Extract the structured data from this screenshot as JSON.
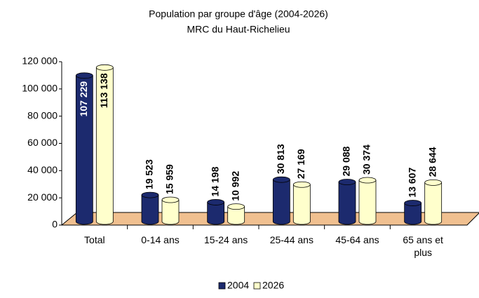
{
  "chart_data": {
    "type": "bar",
    "title": "Population par groupe d'âge (2004-2026)",
    "subtitle": "MRC du Haut-Richelieu",
    "categories": [
      "Total",
      "0-14 ans",
      "15-24 ans",
      "25-44 ans",
      "45-64 ans",
      "65 ans et plus"
    ],
    "series": [
      {
        "name": "2004",
        "color": "#1c2a6e",
        "values": [
          107229,
          19523,
          14198,
          30813,
          29088,
          13607
        ],
        "value_labels": [
          "107 229",
          "19 523",
          "14 198",
          "30 813",
          "29 088",
          "13 607"
        ]
      },
      {
        "name": "2026",
        "color": "#ffffcc",
        "values": [
          113138,
          15959,
          10992,
          27169,
          30374,
          28644
        ],
        "value_labels": [
          "113 138",
          "15 959",
          "10 992",
          "27 169",
          "30 374",
          "28 644"
        ]
      }
    ],
    "ylim": [
      0,
      120000
    ],
    "yticks": [
      0,
      {
        "value": 20000,
        "label": "20 000"
      },
      {
        "value": 40000,
        "label": "40 000"
      },
      {
        "value": 60000,
        "label": "60 000"
      },
      {
        "value": 80000,
        "label": "80 000"
      },
      {
        "value": 100000,
        "label": "100 000"
      },
      {
        "value": 120000,
        "label": "120 000"
      }
    ],
    "floor_color": "#f0c090",
    "legend": "bottom"
  }
}
